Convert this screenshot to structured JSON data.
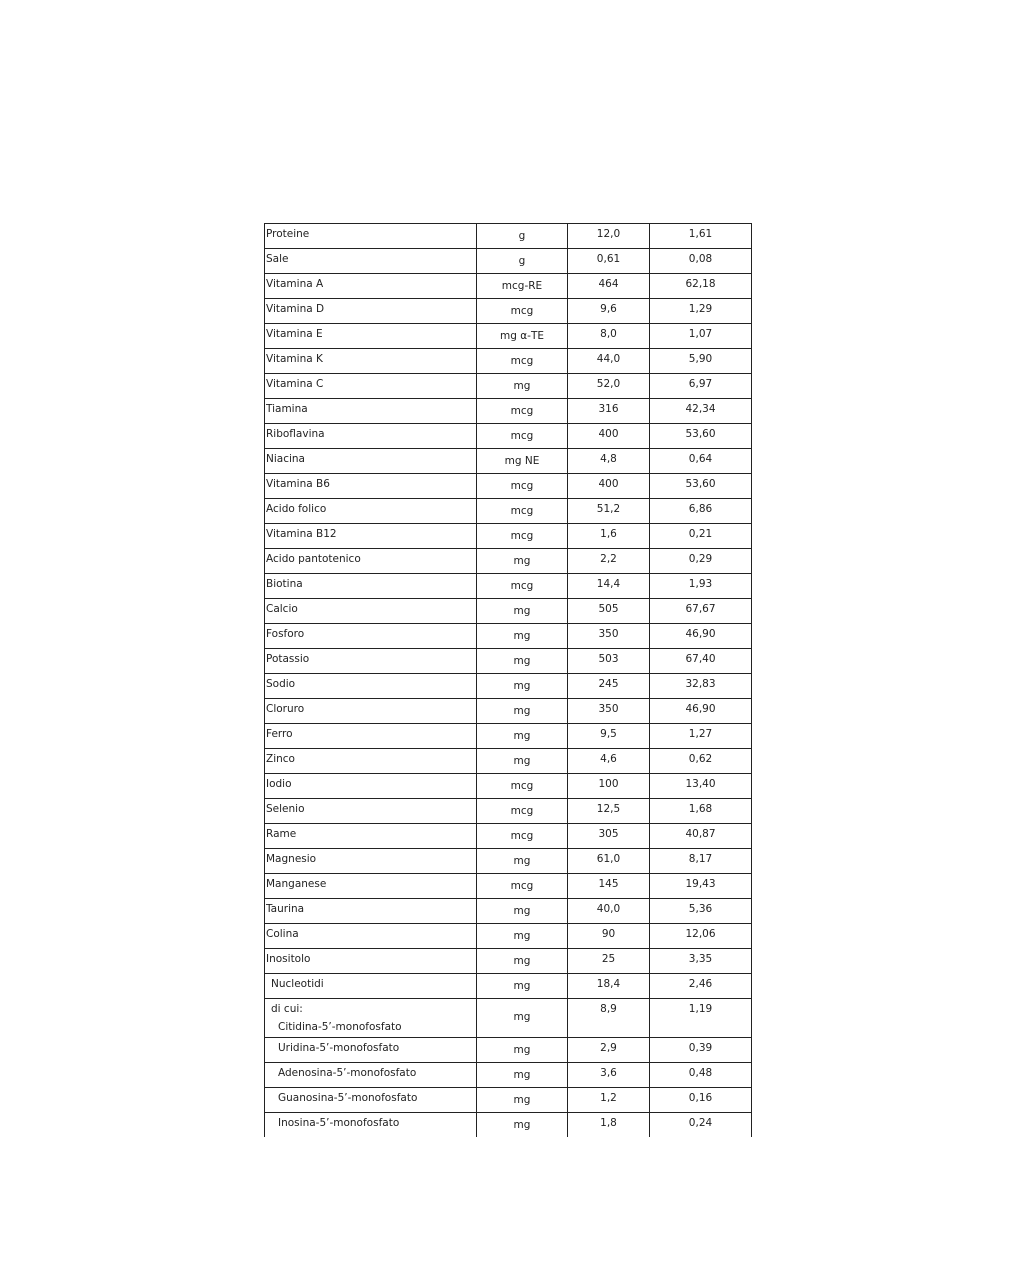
{
  "table": {
    "rows": [
      {
        "name": "Proteine",
        "unit": "g",
        "v1": "12,0",
        "v2": "1,61"
      },
      {
        "name": "Sale",
        "unit": "g",
        "v1": "0,61",
        "v2": "0,08"
      },
      {
        "name": "Vitamina A",
        "unit": "mcg-RE",
        "v1": "464",
        "v2": "62,18"
      },
      {
        "name": "Vitamina D",
        "unit": "mcg",
        "v1": "9,6",
        "v2": "1,29"
      },
      {
        "name": "Vitamina E",
        "unit": "mg α-TE",
        "v1": "8,0",
        "v2": "1,07"
      },
      {
        "name": "Vitamina K",
        "unit": "mcg",
        "v1": "44,0",
        "v2": "5,90"
      },
      {
        "name": "Vitamina C",
        "unit": "mg",
        "v1": "52,0",
        "v2": "6,97"
      },
      {
        "name": "Tiamina",
        "unit": "mcg",
        "v1": "316",
        "v2": "42,34"
      },
      {
        "name": "Riboflavina",
        "unit": "mcg",
        "v1": "400",
        "v2": "53,60"
      },
      {
        "name": "Niacina",
        "unit": "mg NE",
        "v1": "4,8",
        "v2": "0,64"
      },
      {
        "name": "Vitamina B6",
        "unit": "mcg",
        "v1": "400",
        "v2": "53,60"
      },
      {
        "name": "Acido folico",
        "unit": "mcg",
        "v1": "51,2",
        "v2": "6,86"
      },
      {
        "name": "Vitamina B12",
        "unit": "mcg",
        "v1": "1,6",
        "v2": "0,21"
      },
      {
        "name": "Acido pantotenico",
        "unit": "mg",
        "v1": "2,2",
        "v2": "0,29"
      },
      {
        "name": "Biotina",
        "unit": "mcg",
        "v1": "14,4",
        "v2": "1,93"
      },
      {
        "name": "Calcio",
        "unit": "mg",
        "v1": "505",
        "v2": "67,67"
      },
      {
        "name": "Fosforo",
        "unit": "mg",
        "v1": "350",
        "v2": "46,90"
      },
      {
        "name": "Potassio",
        "unit": "mg",
        "v1": "503",
        "v2": "67,40"
      },
      {
        "name": "Sodio",
        "unit": "mg",
        "v1": "245",
        "v2": "32,83"
      },
      {
        "name": "Cloruro",
        "unit": "mg",
        "v1": "350",
        "v2": "46,90"
      },
      {
        "name": "Ferro",
        "unit": "mg",
        "v1": "9,5",
        "v2": "1,27"
      },
      {
        "name": "Zinco",
        "unit": "mg",
        "v1": "4,6",
        "v2": "0,62"
      },
      {
        "name": "Iodio",
        "unit": "mcg",
        "v1": "100",
        "v2": "13,40"
      },
      {
        "name": "Selenio",
        "unit": "mcg",
        "v1": "12,5",
        "v2": "1,68"
      },
      {
        "name": "Rame",
        "unit": "mcg",
        "v1": "305",
        "v2": "40,87"
      },
      {
        "name": "Magnesio",
        "unit": "mg",
        "v1": "61,0",
        "v2": "8,17"
      },
      {
        "name": "Manganese",
        "unit": "mcg",
        "v1": "145",
        "v2": "19,43"
      },
      {
        "name": "Taurina",
        "unit": "mg",
        "v1": "40,0",
        "v2": "5,36"
      },
      {
        "name": "Colina",
        "unit": "mg",
        "v1": "90",
        "v2": "12,06"
      },
      {
        "name": "Inositolo",
        "unit": "mg",
        "v1": "25",
        "v2": "3,35"
      },
      {
        "name": "Nucleotidi",
        "unit": "mg",
        "v1": "18,4",
        "v2": "2,46",
        "indent": 1
      },
      {
        "name": "di cui:",
        "name2": "Citidina-5’-monofosfato",
        "unit": "mg",
        "v1": "8,9",
        "v2": "1,19",
        "indent": 1
      },
      {
        "name": "Uridina-5’-monofosfato",
        "unit": "mg",
        "v1": "2,9",
        "v2": "0,39",
        "indent": 2
      },
      {
        "name": "Adenosina-5’-monofosfato",
        "unit": "mg",
        "v1": "3,6",
        "v2": "0,48",
        "indent": 2
      },
      {
        "name": "Guanosina-5’-monofosfato",
        "unit": "mg",
        "v1": "1,2",
        "v2": "0,16",
        "indent": 2
      },
      {
        "name": "Inosina-5’-monofosfato",
        "unit": "mg",
        "v1": "1,8",
        "v2": "0,24",
        "indent": 2
      }
    ]
  }
}
